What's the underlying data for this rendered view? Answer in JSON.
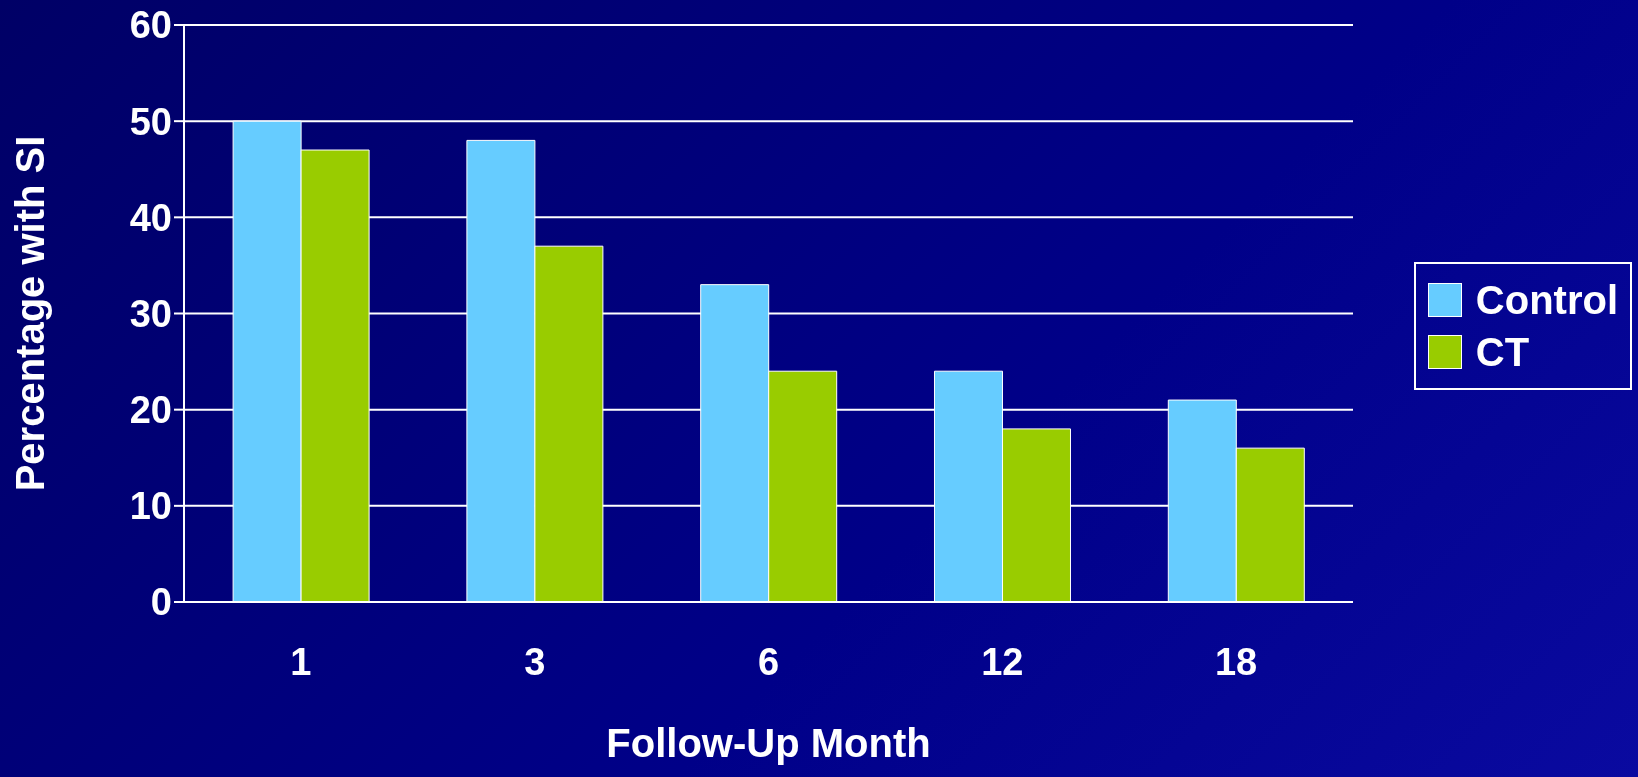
{
  "chart_data": {
    "type": "bar",
    "xlabel": "Follow-Up Month",
    "ylabel": "Percentage with SI",
    "categories": [
      "1",
      "3",
      "6",
      "12",
      "18"
    ],
    "series": [
      {
        "name": "Control",
        "color": "#66ccff",
        "values": [
          50,
          48,
          33,
          24,
          21
        ]
      },
      {
        "name": "CT",
        "color": "#99cc00",
        "values": [
          47,
          37,
          24,
          18,
          16
        ]
      }
    ],
    "ylim": [
      0,
      60
    ],
    "yticks": [
      0,
      10,
      20,
      30,
      40,
      50,
      60
    ],
    "grid": "y",
    "legend": "right"
  }
}
